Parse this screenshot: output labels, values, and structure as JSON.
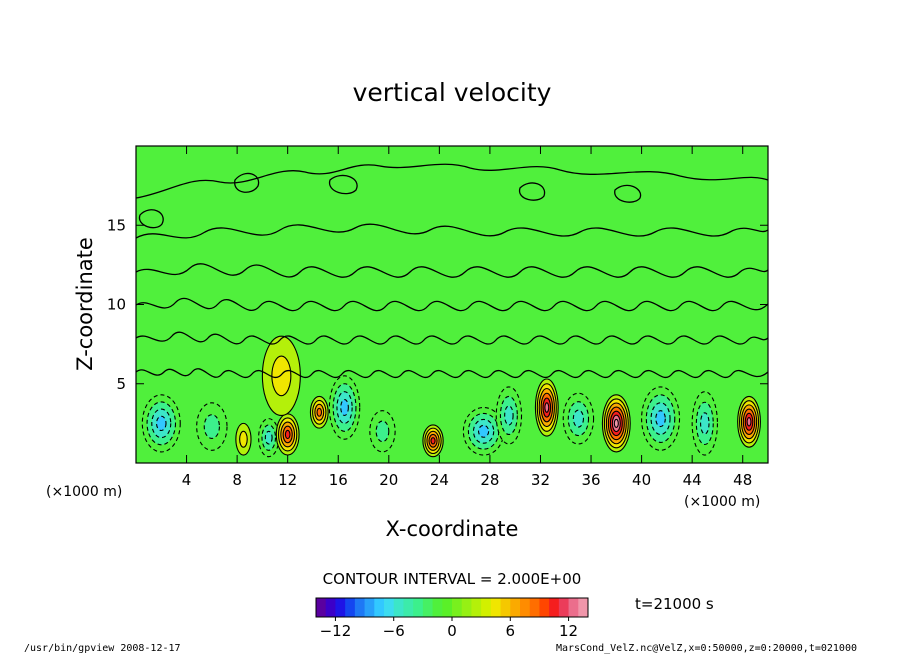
{
  "chart_data": {
    "type": "heatmap",
    "title": "vertical velocity",
    "xlabel": "X-coordinate",
    "ylabel": "Z-coordinate",
    "x_unit": "(×1000 m)",
    "y_unit": "",
    "xlim": [
      0,
      50
    ],
    "ylim": [
      0,
      20
    ],
    "x_ticks": [
      "4",
      "8",
      "12",
      "16",
      "20",
      "24",
      "28",
      "32",
      "36",
      "40",
      "44",
      "48"
    ],
    "y_ticks": [
      "5",
      "10",
      "15"
    ],
    "contour_interval_label": "CONTOUR INTERVAL = 2.000E+00",
    "time_label": "t=21000 s",
    "colorbar": {
      "min": -14,
      "max": 14,
      "step": 1,
      "tick_labels": [
        "−12",
        "−6",
        "0",
        "6",
        "12"
      ],
      "colors": [
        "#5a00a0",
        "#3c00c8",
        "#1e14e6",
        "#1446f0",
        "#1e78f5",
        "#28a0fa",
        "#32c8ff",
        "#3cdcf0",
        "#3ce6c8",
        "#3cebaa",
        "#3cf08c",
        "#46f064",
        "#50f03c",
        "#5af028",
        "#78f01e",
        "#96f014",
        "#b4f00a",
        "#d2f000",
        "#f0e600",
        "#f5c800",
        "#faaa00",
        "#ff8c00",
        "#ff6e00",
        "#ff4600",
        "#f51e1e",
        "#eb3c5a",
        "#eb6e8c",
        "#f096aa"
      ]
    },
    "cells": [
      {
        "x": 2,
        "z": 2.5,
        "w": -8,
        "rx": 1.5,
        "rz": 1.8
      },
      {
        "x": 6,
        "z": 2.3,
        "w": -4,
        "rx": 1.2,
        "rz": 1.5
      },
      {
        "x": 8.5,
        "z": 1.5,
        "w": 4,
        "rx": 0.6,
        "rz": 1.0
      },
      {
        "x": 10.5,
        "z": 1.6,
        "w": -6,
        "rx": 0.8,
        "rz": 1.2
      },
      {
        "x": 12,
        "z": 1.8,
        "w": 10,
        "rx": 0.9,
        "rz": 1.3
      },
      {
        "x": 11.5,
        "z": 5.5,
        "w": 4,
        "rx": 1.5,
        "rz": 2.5
      },
      {
        "x": 14.5,
        "z": 3.2,
        "w": 8,
        "rx": 0.7,
        "rz": 1.0
      },
      {
        "x": 16.5,
        "z": 3.5,
        "w": -8,
        "rx": 1.2,
        "rz": 2.0
      },
      {
        "x": 19.5,
        "z": 2.0,
        "w": -4,
        "rx": 1.0,
        "rz": 1.3
      },
      {
        "x": 23.5,
        "z": 1.4,
        "w": 10,
        "rx": 0.8,
        "rz": 1.0
      },
      {
        "x": 27.5,
        "z": 2.0,
        "w": -7,
        "rx": 1.6,
        "rz": 1.5
      },
      {
        "x": 29.5,
        "z": 3.0,
        "w": -6,
        "rx": 1.0,
        "rz": 1.8
      },
      {
        "x": 32.5,
        "z": 3.5,
        "w": 12,
        "rx": 0.9,
        "rz": 1.8
      },
      {
        "x": 35,
        "z": 2.8,
        "w": -6,
        "rx": 1.2,
        "rz": 1.6
      },
      {
        "x": 38,
        "z": 2.5,
        "w": 14,
        "rx": 1.1,
        "rz": 1.8
      },
      {
        "x": 41.5,
        "z": 2.8,
        "w": -8,
        "rx": 1.5,
        "rz": 2.0
      },
      {
        "x": 45,
        "z": 2.5,
        "w": -6,
        "rx": 1.0,
        "rz": 2.0
      },
      {
        "x": 48.5,
        "z": 2.6,
        "w": 12,
        "rx": 0.9,
        "rz": 1.6
      }
    ]
  },
  "footer": {
    "left": "/usr/bin/gpview   2008-12-17",
    "right": "MarsCond_VelZ.nc@VelZ,x=0:50000,z=0:20000,t=021000"
  }
}
